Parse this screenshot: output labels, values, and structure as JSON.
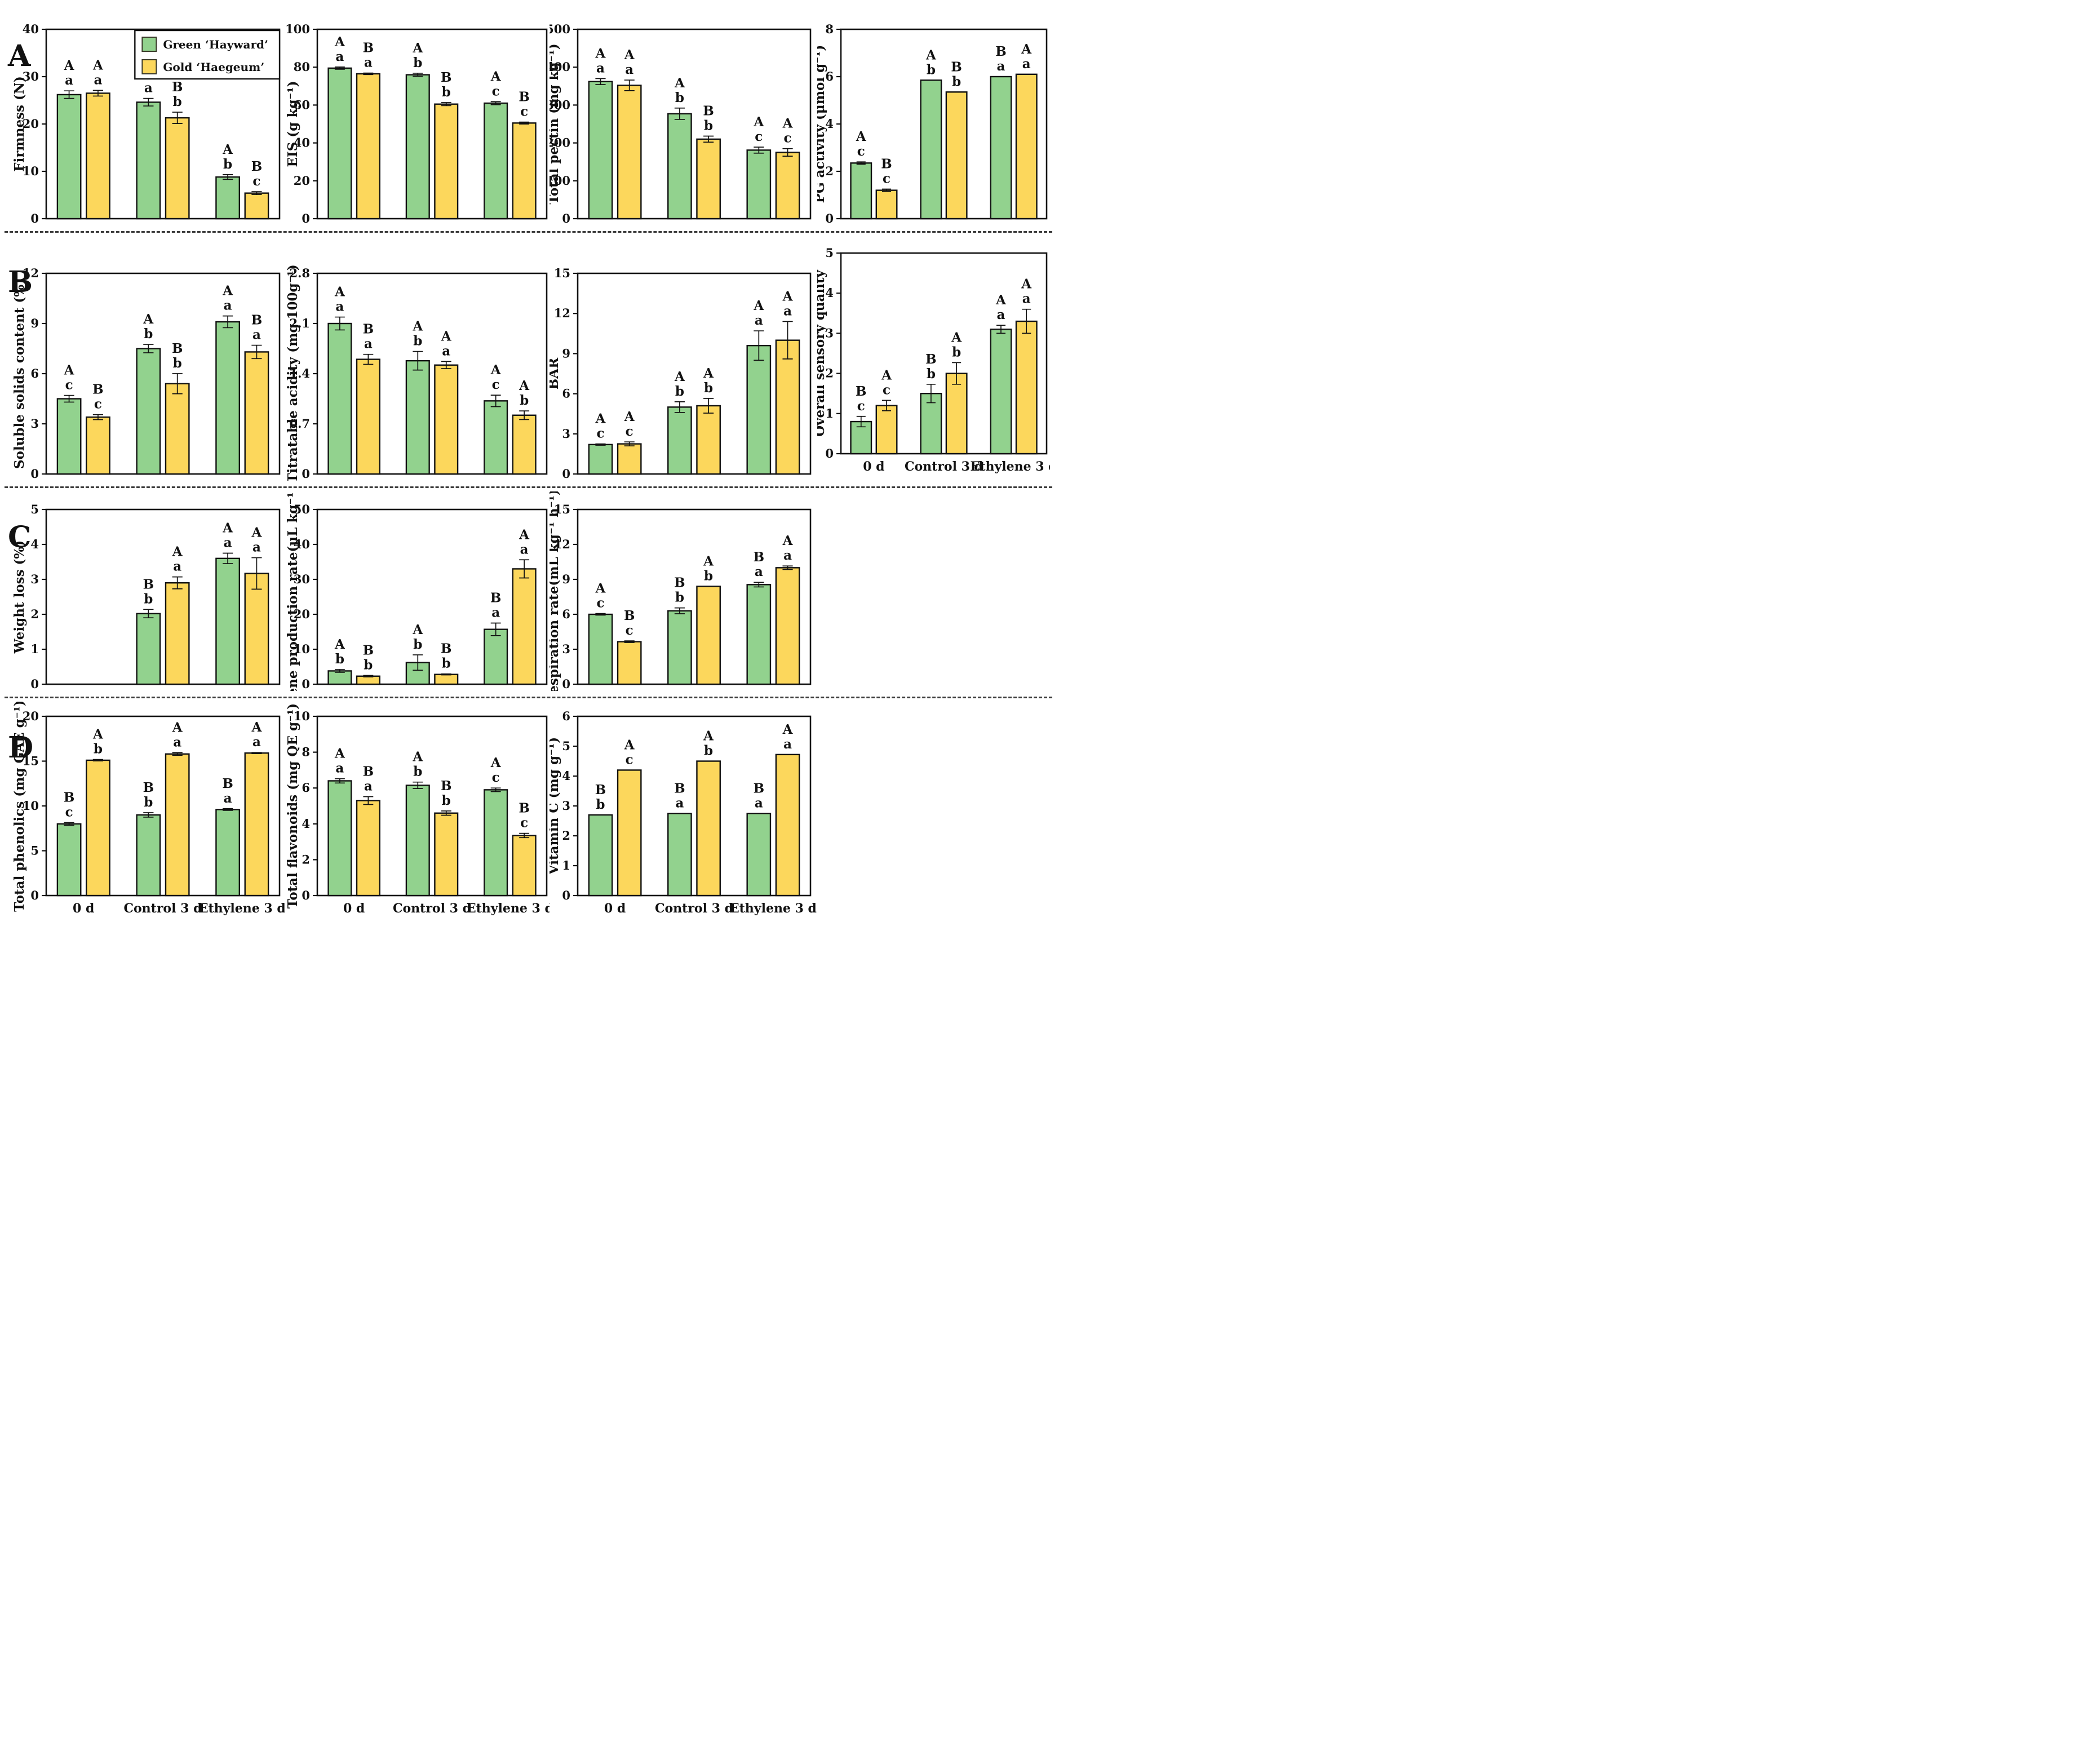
{
  "figure": {
    "panels": [
      "A",
      "B",
      "C",
      "D"
    ],
    "x_categories": [
      "0 d",
      "Control 3 d",
      "Ethylene 3 d"
    ],
    "legend": {
      "items": [
        {
          "label": "Green ‘Hayward’",
          "color": "#92d28e"
        },
        {
          "label": "Gold ‘Haegeum’",
          "color": "#fcd75c"
        }
      ]
    },
    "colors": {
      "green": "#92d28e",
      "gold": "#fcd75c",
      "outline": "#111111",
      "background": "#ffffff"
    }
  },
  "chart_data": [
    {
      "id": "firmness",
      "type": "bar",
      "panel": "A",
      "row": 0,
      "col": 0,
      "legend": true,
      "show_xlabels": false,
      "ylabel": "Firmness (N)",
      "ylim": [
        0,
        40
      ],
      "yticks": [
        0,
        10,
        20,
        30,
        40
      ],
      "categories": [
        "0 d",
        "Control 3 d",
        "Ethylene 3 d"
      ],
      "series": [
        {
          "name": "Green ‘Hayward’",
          "values": [
            26.2,
            24.6,
            8.8
          ],
          "errors": [
            0.8,
            0.8,
            0.5
          ],
          "letters": [
            "Aa",
            "Aa",
            "Ab"
          ]
        },
        {
          "name": "Gold ‘Haegeum’",
          "values": [
            26.5,
            21.3,
            5.4
          ],
          "errors": [
            0.6,
            1.2,
            0.3
          ],
          "letters": [
            "Aa",
            "Bb",
            "Bc"
          ]
        }
      ]
    },
    {
      "id": "eis",
      "type": "bar",
      "panel": "A",
      "row": 0,
      "col": 1,
      "legend": false,
      "show_xlabels": false,
      "ylabel": "EIS (g kg⁻¹)",
      "ylim": [
        0,
        100
      ],
      "yticks": [
        0,
        20,
        40,
        60,
        80,
        100
      ],
      "categories": [
        "0 d",
        "Control 3 d",
        "Ethylene 3 d"
      ],
      "series": [
        {
          "name": "Green ‘Hayward’",
          "values": [
            79.5,
            76.0,
            61.0
          ],
          "errors": [
            0.6,
            0.8,
            0.8
          ],
          "letters": [
            "Aa",
            "Ab",
            "Ac"
          ]
        },
        {
          "name": "Gold ‘Haegeum’",
          "values": [
            76.5,
            60.5,
            50.5
          ],
          "errors": [
            0.4,
            0.8,
            0.5
          ],
          "letters": [
            "Ba",
            "Bb",
            "Bc"
          ]
        }
      ]
    },
    {
      "id": "total-pectin",
      "type": "bar",
      "panel": "A",
      "row": 0,
      "col": 2,
      "legend": false,
      "show_xlabels": false,
      "ylabel": "Total pectin (mg kg⁻¹)",
      "ylim": [
        0,
        500
      ],
      "yticks": [
        0,
        100,
        200,
        300,
        400,
        500
      ],
      "categories": [
        "0 d",
        "Control 3 d",
        "Ethylene 3 d"
      ],
      "series": [
        {
          "name": "Green ‘Hayward’",
          "values": [
            362,
            277,
            181
          ],
          "errors": [
            8,
            15,
            8
          ],
          "letters": [
            "Aa",
            "Ab",
            "Ac"
          ]
        },
        {
          "name": "Gold ‘Haegeum’",
          "values": [
            352,
            210,
            175
          ],
          "errors": [
            14,
            8,
            10
          ],
          "letters": [
            "Aa",
            "Bb",
            "Ac"
          ]
        }
      ]
    },
    {
      "id": "pg-activity",
      "type": "bar",
      "panel": "A",
      "row": 0,
      "col": 3,
      "legend": false,
      "show_xlabels": false,
      "ylabel": "PG activity (μmol g⁻¹)",
      "ylim": [
        0,
        8
      ],
      "yticks": [
        0,
        2,
        4,
        6,
        8
      ],
      "categories": [
        "0 d",
        "Control 3 d",
        "Ethylene 3 d"
      ],
      "series": [
        {
          "name": "Green ‘Hayward’",
          "values": [
            2.35,
            5.85,
            6.0
          ],
          "errors": [
            0.05,
            0,
            0
          ],
          "letters": [
            "Ac",
            "Ab",
            "Ba"
          ]
        },
        {
          "name": "Gold ‘Haegeum’",
          "values": [
            1.2,
            5.35,
            6.1
          ],
          "errors": [
            0.05,
            0,
            0
          ],
          "letters": [
            "Bc",
            "Bb",
            "Aa"
          ]
        }
      ]
    },
    {
      "id": "soluble-solids-content",
      "type": "bar",
      "panel": "B",
      "row": 1,
      "col": 0,
      "legend": false,
      "show_xlabels": false,
      "ylabel": "Soluble solids content (%)",
      "ylim": [
        0,
        12
      ],
      "yticks": [
        0,
        3,
        6,
        9,
        12
      ],
      "categories": [
        "0 d",
        "Control 3 d",
        "Ethylene 3 d"
      ],
      "series": [
        {
          "name": "Green ‘Hayward’",
          "values": [
            4.5,
            7.5,
            9.1
          ],
          "errors": [
            0.2,
            0.25,
            0.35
          ],
          "letters": [
            "Ac",
            "Ab",
            "Aa"
          ]
        },
        {
          "name": "Gold ‘Haegeum’",
          "values": [
            3.4,
            5.4,
            7.3
          ],
          "errors": [
            0.15,
            0.6,
            0.4
          ],
          "letters": [
            "Bc",
            "Bb",
            "Ba"
          ]
        }
      ]
    },
    {
      "id": "titratable-acidity",
      "type": "bar",
      "panel": "B",
      "row": 1,
      "col": 1,
      "legend": false,
      "show_xlabels": false,
      "ylabel": "Titratable acidity (mg 100g⁻¹)",
      "ylim": [
        0,
        2.8
      ],
      "yticks": [
        0,
        0.7,
        1.4,
        2.1,
        2.8
      ],
      "categories": [
        "0 d",
        "Control 3 d",
        "Ethylene 3 d"
      ],
      "series": [
        {
          "name": "Green ‘Hayward’",
          "values": [
            2.1,
            1.58,
            1.02
          ],
          "errors": [
            0.09,
            0.13,
            0.08
          ],
          "letters": [
            "Aa",
            "Ab",
            "Ac"
          ]
        },
        {
          "name": "Gold ‘Haegeum’",
          "values": [
            1.6,
            1.52,
            0.82
          ],
          "errors": [
            0.07,
            0.05,
            0.06
          ],
          "letters": [
            "Ba",
            "Aa",
            "Ab"
          ]
        }
      ]
    },
    {
      "id": "bar-ratio",
      "type": "bar",
      "panel": "B",
      "row": 1,
      "col": 2,
      "legend": false,
      "show_xlabels": false,
      "ylabel": "BAR",
      "ylim": [
        0,
        15
      ],
      "yticks": [
        0,
        3,
        6,
        9,
        12,
        15
      ],
      "categories": [
        "0 d",
        "Control 3 d",
        "Ethylene 3 d"
      ],
      "series": [
        {
          "name": "Green ‘Hayward’",
          "values": [
            2.2,
            5.0,
            9.6
          ],
          "errors": [
            0.05,
            0.4,
            1.1
          ],
          "letters": [
            "Ac",
            "Ab",
            "Aa"
          ]
        },
        {
          "name": "Gold ‘Haegeum’",
          "values": [
            2.25,
            5.1,
            10.0
          ],
          "errors": [
            0.15,
            0.55,
            1.4
          ],
          "letters": [
            "Ac",
            "Ab",
            "Aa"
          ]
        }
      ]
    },
    {
      "id": "overall-sensory-quality",
      "type": "bar",
      "panel": "B",
      "row": 1,
      "col": 3,
      "legend": false,
      "show_xlabels": true,
      "ylabel": "Overall sensory quality",
      "ylim": [
        0,
        5
      ],
      "yticks": [
        0,
        1,
        2,
        3,
        4,
        5
      ],
      "categories": [
        "0 d",
        "Control 3 d",
        "Ethylene 3 d"
      ],
      "series": [
        {
          "name": "Green ‘Hayward’",
          "values": [
            0.8,
            1.5,
            3.1
          ],
          "errors": [
            0.13,
            0.23,
            0.1
          ],
          "letters": [
            "Bc",
            "Bb",
            "Aa"
          ]
        },
        {
          "name": "Gold ‘Haegeum’",
          "values": [
            1.2,
            2.0,
            3.3
          ],
          "errors": [
            0.13,
            0.27,
            0.3
          ],
          "letters": [
            "Ac",
            "Ab",
            "Aa"
          ]
        }
      ]
    },
    {
      "id": "weight-loss",
      "type": "bar",
      "panel": "C",
      "row": 2,
      "col": 0,
      "legend": false,
      "show_xlabels": false,
      "ylabel": "Weight loss (%)",
      "ylim": [
        0,
        5
      ],
      "yticks": [
        0,
        1,
        2,
        3,
        4,
        5
      ],
      "categories": [
        "0 d",
        "Control 3 d",
        "Ethylene 3 d"
      ],
      "series": [
        {
          "name": "Green ‘Hayward’",
          "values": [
            null,
            2.02,
            3.6
          ],
          "errors": [
            0,
            0.12,
            0.15
          ],
          "letters": [
            null,
            "Bb",
            "Aa"
          ]
        },
        {
          "name": "Gold ‘Haegeum’",
          "values": [
            null,
            2.9,
            3.17
          ],
          "errors": [
            0,
            0.17,
            0.45
          ],
          "letters": [
            null,
            "Aa",
            "Aa"
          ]
        }
      ]
    },
    {
      "id": "ethylene-production-rate",
      "type": "bar",
      "panel": "C",
      "row": 2,
      "col": 1,
      "legend": false,
      "show_xlabels": false,
      "ylabel": "Ethylene production rate(μL kg⁻¹ h⁻¹)",
      "ylim": [
        0,
        50
      ],
      "yticks": [
        0,
        10,
        20,
        30,
        40,
        50
      ],
      "categories": [
        "0 d",
        "Control 3 d",
        "Ethylene 3 d"
      ],
      "series": [
        {
          "name": "Green ‘Hayward’",
          "values": [
            3.8,
            6.2,
            15.7
          ],
          "errors": [
            0.4,
            2.2,
            1.8
          ],
          "letters": [
            "Ab",
            "Ab",
            "Ba"
          ]
        },
        {
          "name": "Gold ‘Haegeum’",
          "values": [
            2.3,
            2.8,
            33.0
          ],
          "errors": [
            0.2,
            0.15,
            2.6
          ],
          "letters": [
            "Bb",
            "Bb",
            "Aa"
          ]
        }
      ]
    },
    {
      "id": "respiration-rate",
      "type": "bar",
      "panel": "C",
      "row": 2,
      "col": 2,
      "legend": false,
      "show_xlabels": false,
      "ylabel": "Respiration rate(mL kg⁻¹ h⁻¹)",
      "ylim": [
        0,
        15
      ],
      "yticks": [
        0,
        3,
        6,
        9,
        12,
        15
      ],
      "categories": [
        "0 d",
        "Control 3 d",
        "Ethylene 3 d"
      ],
      "series": [
        {
          "name": "Green ‘Hayward’",
          "values": [
            6.0,
            6.3,
            8.55
          ],
          "errors": [
            0.07,
            0.25,
            0.2
          ],
          "letters": [
            "Ac",
            "Bb",
            "Ba"
          ]
        },
        {
          "name": "Gold ‘Haegeum’",
          "values": [
            3.65,
            8.4,
            10.0
          ],
          "errors": [
            0.07,
            0,
            0.15
          ],
          "letters": [
            "Bc",
            "Ab",
            "Aa"
          ]
        }
      ]
    },
    {
      "id": "total-phenolics",
      "type": "bar",
      "panel": "D",
      "row": 3,
      "col": 0,
      "legend": false,
      "show_xlabels": true,
      "ylabel": "Total phenolics (mg GAE g⁻¹)",
      "ylim": [
        0,
        20
      ],
      "yticks": [
        0,
        5,
        10,
        15,
        20
      ],
      "categories": [
        "0 d",
        "Control 3 d",
        "Ethylene 3 d"
      ],
      "series": [
        {
          "name": "Green ‘Hayward’",
          "values": [
            8.0,
            9.0,
            9.6
          ],
          "errors": [
            0.15,
            0.25,
            0.1
          ],
          "letters": [
            "Bc",
            "Bb",
            "Ba"
          ]
        },
        {
          "name": "Gold ‘Haegeum’",
          "values": [
            15.1,
            15.8,
            15.9
          ],
          "errors": [
            0.08,
            0.15,
            0.06
          ],
          "letters": [
            "Ab",
            "Aa",
            "Aa"
          ]
        }
      ]
    },
    {
      "id": "total-flavonoids",
      "type": "bar",
      "panel": "D",
      "row": 3,
      "col": 1,
      "legend": false,
      "show_xlabels": true,
      "ylabel": "Total flavonoids (mg QE g⁻¹)",
      "ylim": [
        0,
        10
      ],
      "yticks": [
        0,
        2,
        4,
        6,
        8,
        10
      ],
      "categories": [
        "0 d",
        "Control 3 d",
        "Ethylene 3 d"
      ],
      "series": [
        {
          "name": "Green ‘Hayward’",
          "values": [
            6.4,
            6.15,
            5.9
          ],
          "errors": [
            0.12,
            0.18,
            0.1
          ],
          "letters": [
            "Aa",
            "Ab",
            "Ac"
          ]
        },
        {
          "name": "Gold ‘Haegeum’",
          "values": [
            5.3,
            4.6,
            3.35
          ],
          "errors": [
            0.22,
            0.12,
            0.12
          ],
          "letters": [
            "Ba",
            "Bb",
            "Bc"
          ]
        }
      ]
    },
    {
      "id": "vitamin-c",
      "type": "bar",
      "panel": "D",
      "row": 3,
      "col": 2,
      "legend": false,
      "show_xlabels": true,
      "ylabel": "Vitamin C (mg g⁻¹)",
      "ylim": [
        0,
        6
      ],
      "yticks": [
        0,
        1,
        2,
        3,
        4,
        5,
        6
      ],
      "categories": [
        "0 d",
        "Control 3 d",
        "Ethylene 3 d"
      ],
      "series": [
        {
          "name": "Green ‘Hayward’",
          "values": [
            2.7,
            2.75,
            2.75
          ],
          "errors": [
            0,
            0,
            0
          ],
          "letters": [
            "Bb",
            "Ba",
            "Ba"
          ]
        },
        {
          "name": "Gold ‘Haegeum’",
          "values": [
            4.2,
            4.5,
            4.72
          ],
          "errors": [
            0,
            0,
            0
          ],
          "letters": [
            "Ac",
            "Ab",
            "Aa"
          ]
        }
      ]
    }
  ]
}
